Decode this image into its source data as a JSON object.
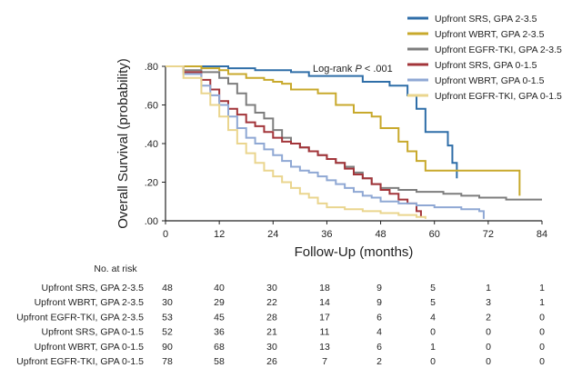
{
  "chart_data": {
    "type": "line",
    "step": true,
    "title": "",
    "xlabel": "Follow-Up (months)",
    "ylabel": "Overall Survival (probability)",
    "xlim": [
      0,
      84
    ],
    "ylim": [
      0,
      0.8
    ],
    "xticks": [
      "0",
      "12",
      "24",
      "36",
      "48",
      "60",
      "72",
      "84"
    ],
    "yticks": [
      ".00",
      ".20",
      ".40",
      ".60",
      ".80"
    ],
    "grid": false,
    "legend_position": "top-right",
    "annotation": {
      "prefix": "Log-rank ",
      "italic": "P",
      "suffix": " < .001"
    },
    "series": [
      {
        "name": "Upfront SRS, GPA 2-3.5",
        "color": "#2f6ea8",
        "x": [
          0,
          12,
          14,
          20,
          28,
          32,
          44,
          50,
          54,
          56,
          58,
          62,
          63,
          64,
          65
        ],
        "y": [
          0.8,
          0.8,
          0.79,
          0.78,
          0.77,
          0.75,
          0.72,
          0.7,
          0.65,
          0.58,
          0.46,
          0.46,
          0.39,
          0.3,
          0.22
        ]
      },
      {
        "name": "Upfront WBRT, GPA 2-3.5",
        "color": "#c8a92c",
        "x": [
          0,
          8,
          12,
          14,
          18,
          22,
          24,
          26,
          28,
          34,
          38,
          42,
          46,
          48,
          52,
          54,
          56,
          58,
          78,
          79
        ],
        "y": [
          0.8,
          0.79,
          0.78,
          0.76,
          0.74,
          0.73,
          0.72,
          0.71,
          0.68,
          0.66,
          0.6,
          0.56,
          0.54,
          0.48,
          0.41,
          0.36,
          0.31,
          0.26,
          0.26,
          0.13
        ]
      },
      {
        "name": "Upfront EGFR-TKI, GPA 2-3.5",
        "color": "#7d7d7d",
        "x": [
          0,
          4,
          8,
          12,
          14,
          16,
          18,
          20,
          22,
          24,
          26,
          28,
          30,
          32,
          34,
          36,
          38,
          40,
          42,
          44,
          46,
          48,
          52,
          56,
          62,
          66,
          70,
          76,
          79,
          84
        ],
        "y": [
          0.8,
          0.78,
          0.77,
          0.74,
          0.71,
          0.66,
          0.6,
          0.56,
          0.53,
          0.47,
          0.43,
          0.4,
          0.38,
          0.36,
          0.34,
          0.32,
          0.3,
          0.28,
          0.25,
          0.22,
          0.19,
          0.17,
          0.16,
          0.15,
          0.14,
          0.13,
          0.12,
          0.11,
          0.11,
          0.11
        ]
      },
      {
        "name": "Upfront SRS, GPA 0-1.5",
        "color": "#a3353a",
        "x": [
          0,
          4,
          8,
          10,
          12,
          14,
          16,
          18,
          20,
          22,
          24,
          26,
          28,
          30,
          32,
          34,
          36,
          38,
          40,
          42,
          44,
          46,
          48,
          50,
          52,
          54,
          56,
          57
        ],
        "y": [
          0.8,
          0.77,
          0.73,
          0.68,
          0.62,
          0.58,
          0.55,
          0.51,
          0.49,
          0.46,
          0.43,
          0.41,
          0.4,
          0.38,
          0.36,
          0.34,
          0.32,
          0.3,
          0.27,
          0.24,
          0.22,
          0.19,
          0.16,
          0.14,
          0.11,
          0.09,
          0.05,
          0.02
        ]
      },
      {
        "name": "Upfront WBRT, GPA 0-1.5",
        "color": "#8fa8d4",
        "x": [
          0,
          4,
          8,
          10,
          12,
          14,
          16,
          18,
          20,
          22,
          24,
          26,
          28,
          30,
          32,
          34,
          36,
          38,
          40,
          42,
          44,
          46,
          48,
          52,
          56,
          60,
          66,
          70,
          71
        ],
        "y": [
          0.8,
          0.76,
          0.7,
          0.65,
          0.6,
          0.54,
          0.48,
          0.43,
          0.4,
          0.37,
          0.34,
          0.31,
          0.28,
          0.26,
          0.25,
          0.23,
          0.21,
          0.19,
          0.17,
          0.15,
          0.13,
          0.12,
          0.1,
          0.09,
          0.08,
          0.07,
          0.06,
          0.05,
          0.01
        ]
      },
      {
        "name": "Upfront EGFR-TKI, GPA 0-1.5",
        "color": "#ead58e",
        "x": [
          0,
          4,
          8,
          10,
          12,
          14,
          16,
          18,
          20,
          22,
          24,
          26,
          28,
          30,
          32,
          34,
          36,
          40,
          44,
          48,
          52,
          56,
          58
        ],
        "y": [
          0.8,
          0.74,
          0.66,
          0.6,
          0.54,
          0.47,
          0.4,
          0.35,
          0.3,
          0.26,
          0.23,
          0.2,
          0.17,
          0.14,
          0.12,
          0.09,
          0.07,
          0.06,
          0.05,
          0.04,
          0.03,
          0.02,
          0.01
        ]
      }
    ],
    "risk_table": {
      "title": "No. at risk",
      "times": [
        "0",
        "12",
        "24",
        "36",
        "48",
        "60",
        "72",
        "84"
      ],
      "rows": [
        {
          "label": "Upfront SRS, GPA 2-3.5",
          "values": [
            "48",
            "40",
            "30",
            "18",
            "9",
            "5",
            "1",
            "1"
          ]
        },
        {
          "label": "Upfront WBRT, GPA 2-3.5",
          "values": [
            "30",
            "29",
            "22",
            "14",
            "9",
            "5",
            "3",
            "1"
          ]
        },
        {
          "label": "Upfront EGFR-TKI, GPA 2-3.5",
          "values": [
            "53",
            "45",
            "28",
            "17",
            "6",
            "4",
            "2",
            "0"
          ]
        },
        {
          "label": "Upfront SRS, GPA 0-1.5",
          "values": [
            "52",
            "36",
            "21",
            "11",
            "4",
            "0",
            "0",
            "0"
          ]
        },
        {
          "label": "Upfront WBRT, GPA 0-1.5",
          "values": [
            "90",
            "68",
            "30",
            "13",
            "6",
            "1",
            "0",
            "0"
          ]
        },
        {
          "label": "Upfront EGFR-TKI, GPA 0-1.5",
          "values": [
            "78",
            "58",
            "26",
            "7",
            "2",
            "0",
            "0",
            "0"
          ]
        }
      ]
    }
  }
}
